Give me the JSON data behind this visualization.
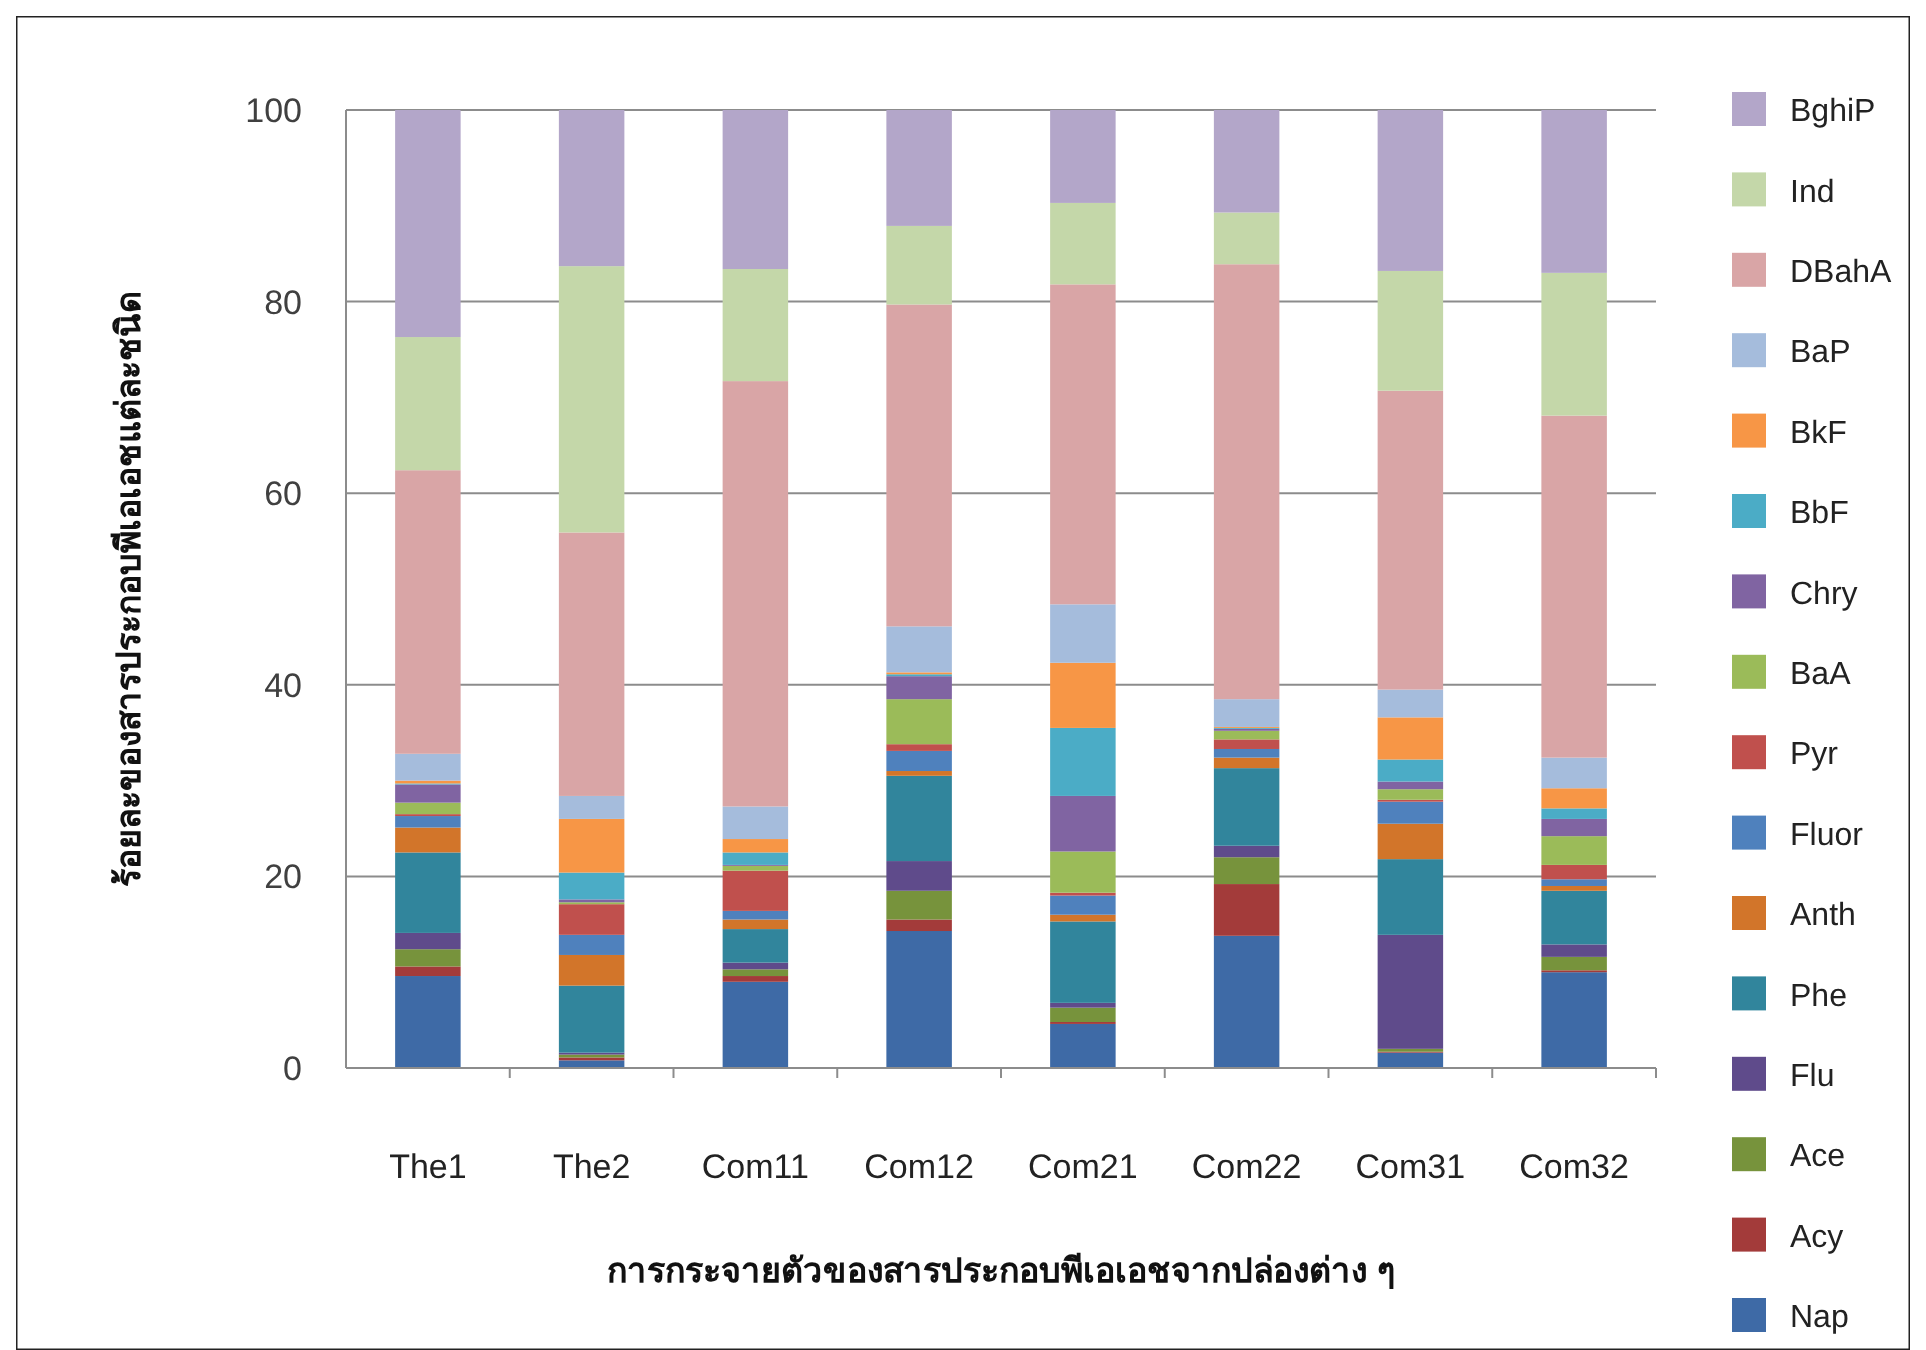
{
  "chart_data": {
    "type": "bar",
    "stacked": true,
    "xlabel": "การกระจายตัวของสารประกอบพีเอเอชจากปล่องต่าง ๆ",
    "ylabel": "ร้อยละของสารประกอบพีเอเอชแต่ละชนิด",
    "categories": [
      "The1",
      "The2",
      "Com11",
      "Com12",
      "Com21",
      "Com22",
      "Com31",
      "Com32"
    ],
    "ylim": [
      0,
      100
    ],
    "yticks": [
      0,
      20,
      40,
      60,
      80,
      100
    ],
    "grid": "y",
    "legend": "right",
    "series": [
      {
        "name": "Nap",
        "color": "#3e6aa6",
        "values": [
          9.6,
          0.8,
          9.0,
          14.3,
          4.6,
          13.8,
          1.6,
          10.0
        ]
      },
      {
        "name": "Acy",
        "color": "#a33b3a",
        "values": [
          1.0,
          0.3,
          0.6,
          1.2,
          0.2,
          5.4,
          0.1,
          0.2
        ]
      },
      {
        "name": "Ace",
        "color": "#77933c",
        "values": [
          1.8,
          0.3,
          0.7,
          3.0,
          1.5,
          2.8,
          0.3,
          1.4
        ]
      },
      {
        "name": "Flu",
        "color": "#5f4b8b",
        "values": [
          1.7,
          0.2,
          0.7,
          3.1,
          0.5,
          1.2,
          11.9,
          1.3
        ]
      },
      {
        "name": "Phe",
        "color": "#31859c",
        "values": [
          8.4,
          7.0,
          3.5,
          8.9,
          8.5,
          8.1,
          7.9,
          5.6
        ]
      },
      {
        "name": "Anth",
        "color": "#d2752a",
        "values": [
          2.6,
          3.2,
          1.0,
          0.5,
          0.7,
          1.1,
          3.7,
          0.5
        ]
      },
      {
        "name": "Fluor",
        "color": "#4f81bd",
        "values": [
          1.2,
          2.1,
          0.9,
          2.1,
          2.0,
          0.9,
          2.3,
          0.7
        ]
      },
      {
        "name": "Pyr",
        "color": "#c0504d",
        "values": [
          0.2,
          3.2,
          4.2,
          0.7,
          0.3,
          1.0,
          0.2,
          1.5
        ]
      },
      {
        "name": "BaA",
        "color": "#9bbb59",
        "values": [
          1.2,
          0.2,
          0.5,
          4.7,
          4.3,
          0.9,
          1.1,
          3.0
        ]
      },
      {
        "name": "Chry",
        "color": "#8064a2",
        "values": [
          1.9,
          0.3,
          0.1,
          2.4,
          5.8,
          0.2,
          0.8,
          1.8
        ]
      },
      {
        "name": "BbF",
        "color": "#4bacc6",
        "values": [
          0.1,
          2.8,
          1.3,
          0.2,
          7.1,
          0.1,
          2.3,
          1.1
        ]
      },
      {
        "name": "BkF",
        "color": "#f79646",
        "values": [
          0.3,
          5.6,
          1.4,
          0.2,
          6.8,
          0.1,
          4.4,
          2.1
        ]
      },
      {
        "name": "BaP",
        "color": "#a5bcdc",
        "values": [
          2.8,
          2.4,
          3.4,
          4.8,
          6.1,
          2.9,
          2.9,
          3.2
        ]
      },
      {
        "name": "DBahA",
        "color": "#d9a5a6",
        "values": [
          29.6,
          27.5,
          44.4,
          33.6,
          33.4,
          45.4,
          31.2,
          35.7
        ]
      },
      {
        "name": "Ind",
        "color": "#c4d7a9",
        "values": [
          13.9,
          27.8,
          11.7,
          8.2,
          8.5,
          5.4,
          12.5,
          14.9
        ]
      },
      {
        "name": "BghiP",
        "color": "#b3a6c9",
        "values": [
          23.7,
          16.3,
          16.6,
          12.1,
          9.7,
          10.7,
          16.8,
          17.0
        ]
      }
    ]
  }
}
